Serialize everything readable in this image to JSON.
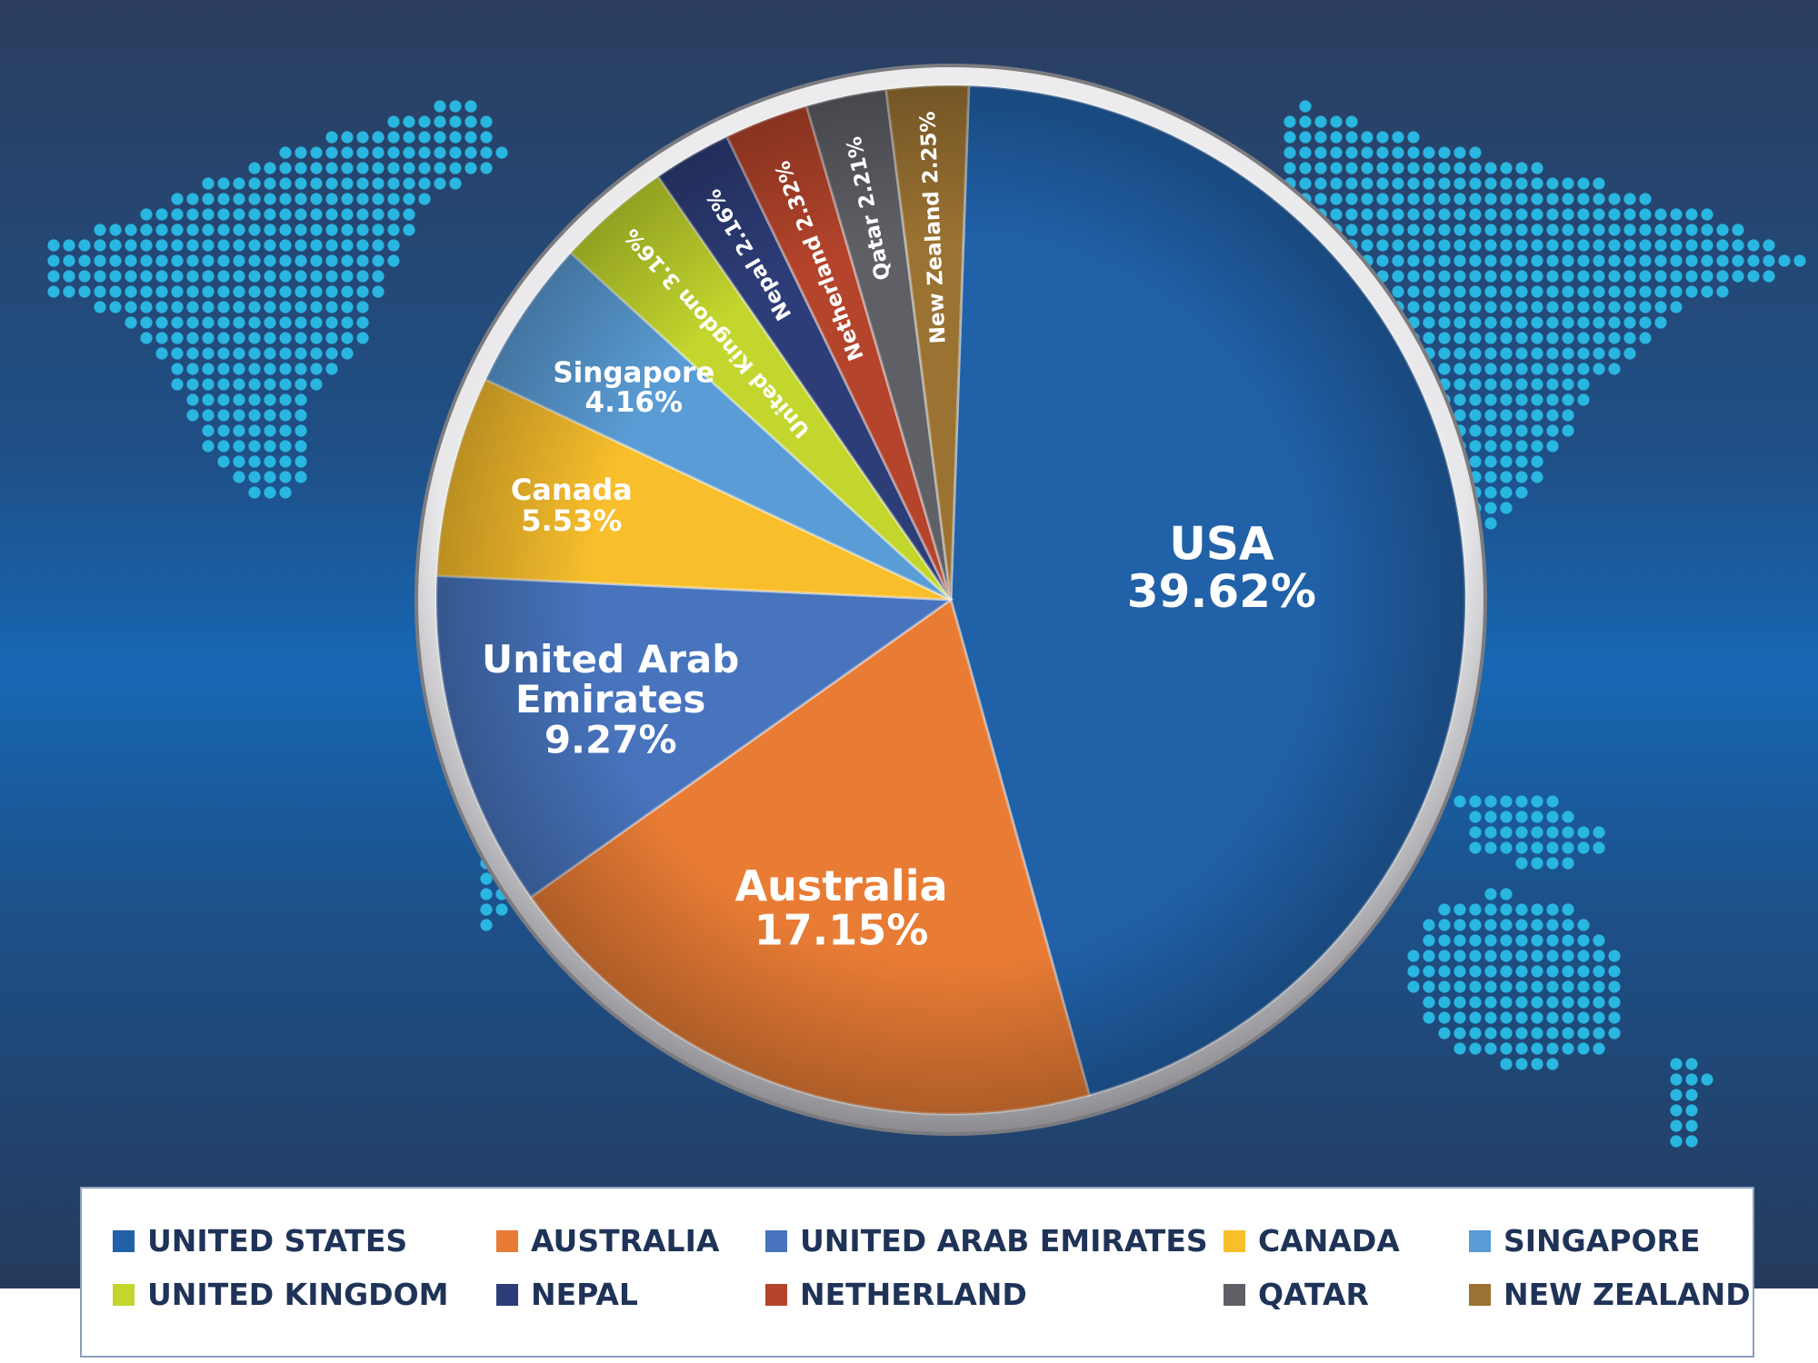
{
  "chart_data": {
    "type": "pie",
    "slices": [
      {
        "label": "USA",
        "value_text": "39.62%",
        "value": 39.62,
        "legend": "UNITED STATES",
        "color": "#2161a8"
      },
      {
        "label": "Australia",
        "value_text": "17.15%",
        "value": 17.15,
        "legend": "AUSTRALIA",
        "color": "#e97c35"
      },
      {
        "label": "United Arab Emirates",
        "value_text": "9.27%",
        "value": 9.27,
        "legend": "UNITED ARAB EMIRATES",
        "color": "#4774bd"
      },
      {
        "label": "Canada",
        "value_text": "5.53%",
        "value": 5.53,
        "legend": "CANADA",
        "color": "#f8be2c"
      },
      {
        "label": "Singapore",
        "value_text": "4.16%",
        "value": 4.16,
        "legend": "SINGAPORE",
        "color": "#5a9cd5"
      },
      {
        "label": "United Kingdom",
        "value_text": "3.16%",
        "value": 3.16,
        "legend": "UNITED KINGDOM",
        "color": "#c3d62d"
      },
      {
        "label": "Nepal",
        "value_text": "2.16%",
        "value": 2.16,
        "legend": "NEPAL",
        "color": "#2d3d78"
      },
      {
        "label": "Netherland",
        "value_text": "2.32%",
        "value": 2.32,
        "legend": "NETHERLAND",
        "color": "#b4442b"
      },
      {
        "label": "Qatar",
        "value_text": "2.21%",
        "value": 2.21,
        "legend": "QATAR",
        "color": "#5e6066"
      },
      {
        "label": "New Zealand",
        "value_text": "2.25%",
        "value": 2.25,
        "legend": "NEW ZEALAND",
        "color": "#9a7232"
      }
    ],
    "legend_placement": "bottom"
  },
  "legend": {
    "items": [
      {
        "label": "UNITED STATES",
        "color": "#2161a8"
      },
      {
        "label": "AUSTRALIA",
        "color": "#e97c35"
      },
      {
        "label": "UNITED ARAB EMIRATES",
        "color": "#4774bd"
      },
      {
        "label": "CANADA",
        "color": "#f8be2c"
      },
      {
        "label": "SINGAPORE",
        "color": "#5a9cd5"
      },
      {
        "label": "UNITED KINGDOM",
        "color": "#c3d62d"
      },
      {
        "label": "NEPAL",
        "color": "#2d3d78"
      },
      {
        "label": "NETHERLAND",
        "color": "#b4442b"
      },
      {
        "label": "QATAR",
        "color": "#5e6066"
      },
      {
        "label": "NEW ZEALAND",
        "color": "#9a7232"
      }
    ]
  },
  "background": {
    "map_dot_color": "#29b6e0"
  }
}
